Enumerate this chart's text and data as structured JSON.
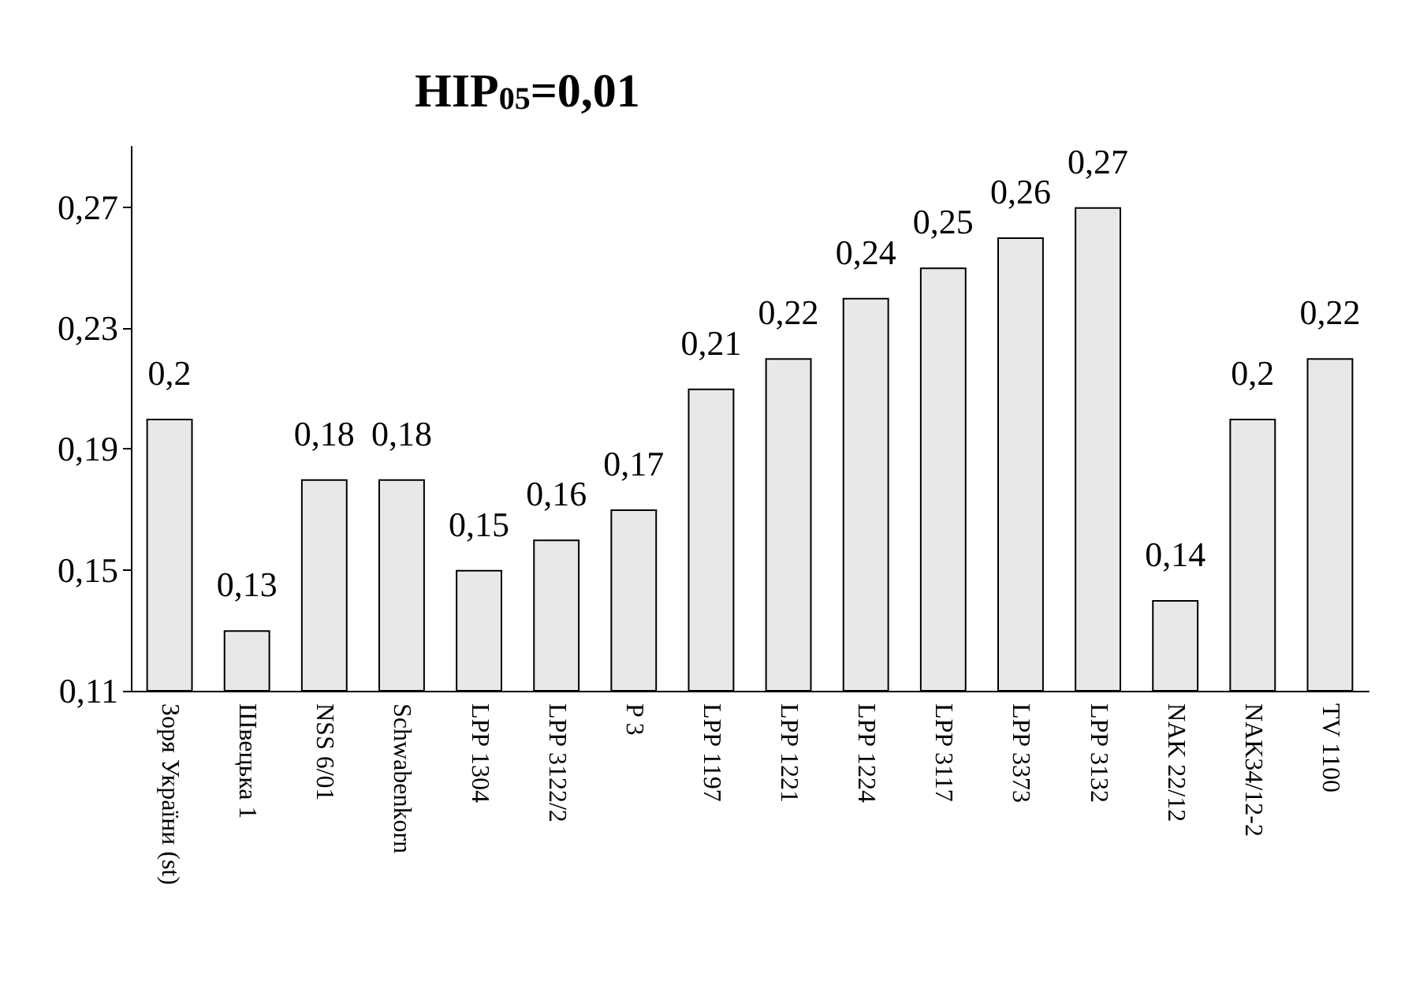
{
  "chart_data": {
    "type": "bar",
    "title": "НІР$_{05}$=0,01",
    "categories": [
      "Зоря України (st)",
      "Швецька 1",
      "NSS 6/01",
      "Schwabenkorn",
      "LPP 1304",
      "LPP 3122/2",
      "P 3",
      "LPP 1197",
      "LPP 1221",
      "LPP 1224",
      "LPP 3117",
      "LPP 3373",
      "LPP 3132",
      "NAK 22/12",
      "NAK34/12-2",
      "TV 1100"
    ],
    "values": [
      0.2,
      0.13,
      0.18,
      0.18,
      0.15,
      0.16,
      0.17,
      0.21,
      0.22,
      0.24,
      0.25,
      0.26,
      0.27,
      0.14,
      0.2,
      0.22
    ],
    "color": "#e8e8e8",
    "ylim": [
      0.11,
      0.29
    ],
    "yticks": [
      {
        "value": 0.11,
        "label": "0,11"
      },
      {
        "value": 0.15,
        "label": "0,15"
      },
      {
        "value": 0.19,
        "label": "0,19"
      },
      {
        "value": 0.23,
        "label": "0,23"
      },
      {
        "value": 0.27,
        "label": "0,27"
      }
    ],
    "value_labels": [
      "0,2",
      "0,13",
      "0,18",
      "0,18",
      "0,15",
      "0,16",
      "0,17",
      "0,21",
      "0,22",
      "0,24",
      "0,25",
      "0,26",
      "0,27",
      "0,14",
      "0,2",
      "0,22"
    ],
    "grid": false
  }
}
